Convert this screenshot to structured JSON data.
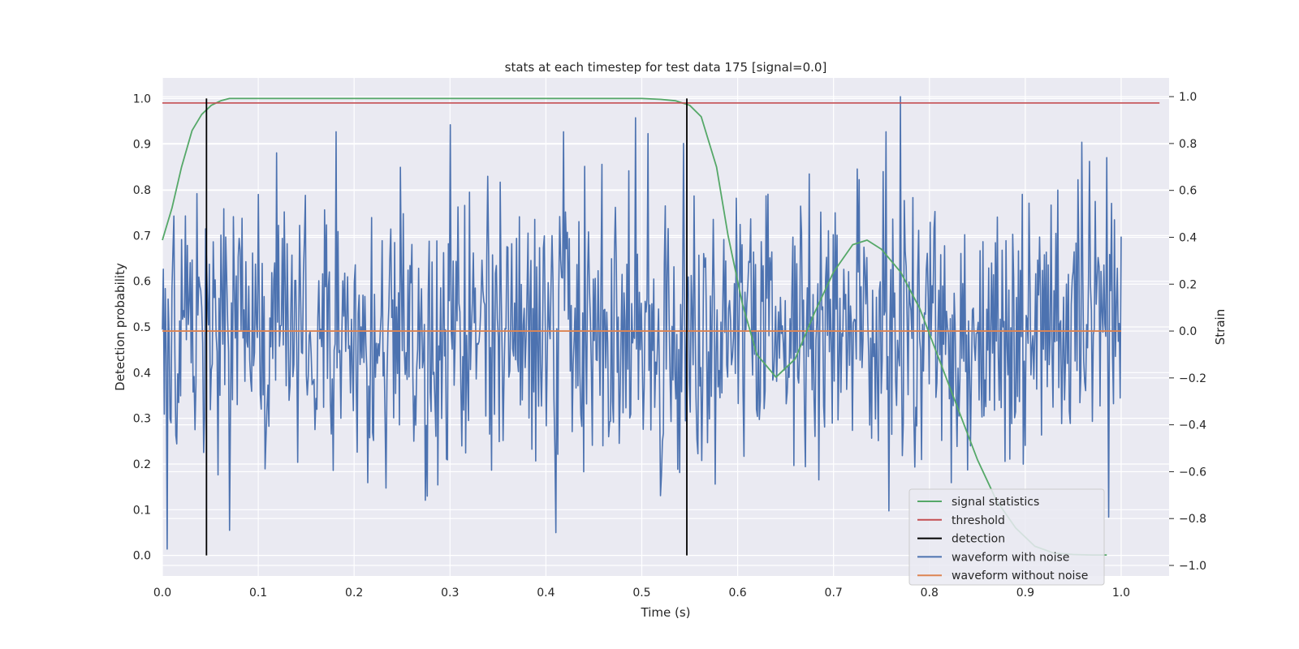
{
  "chart_data": {
    "type": "line",
    "title": "stats at each timestep for test data 175 [signal=0.0]",
    "xlabel": "Time (s)",
    "ylabel": "Detection probability",
    "y2label": "Strain",
    "xlim": [
      0.0,
      1.05
    ],
    "ylim": [
      -0.045,
      1.045
    ],
    "y2lim": [
      -1.045,
      1.08
    ],
    "xticks": [
      "0.0",
      "0.1",
      "0.2",
      "0.3",
      "0.4",
      "0.5",
      "0.6",
      "0.7",
      "0.8",
      "0.9",
      "1.0"
    ],
    "xtick_values": [
      0.0,
      0.1,
      0.2,
      0.3,
      0.4,
      0.5,
      0.6,
      0.7,
      0.8,
      0.9,
      1.0
    ],
    "yticks": [
      "0.0",
      "0.1",
      "0.2",
      "0.3",
      "0.4",
      "0.5",
      "0.6",
      "0.7",
      "0.8",
      "0.9",
      "1.0"
    ],
    "ytick_values": [
      0.0,
      0.1,
      0.2,
      0.3,
      0.4,
      0.5,
      0.6,
      0.7,
      0.8,
      0.9,
      1.0
    ],
    "y2ticks": [
      "−1.0",
      "−0.8",
      "−0.6",
      "−0.4",
      "−0.2",
      "0.0",
      "0.2",
      "0.4",
      "0.6",
      "0.8",
      "1.0"
    ],
    "y2tick_values": [
      -1.0,
      -0.8,
      -0.6,
      -0.4,
      -0.2,
      0.0,
      0.2,
      0.4,
      0.6,
      0.8,
      1.0
    ],
    "grid": true,
    "legend_position": "bottom-right",
    "series": [
      {
        "name": "signal statistics",
        "axis": "left",
        "color": "#55a868",
        "x": [
          0.0,
          0.01,
          0.02,
          0.031,
          0.041,
          0.051,
          0.061,
          0.07,
          0.1,
          0.2,
          0.3,
          0.4,
          0.5,
          0.52,
          0.535,
          0.55,
          0.562,
          0.578,
          0.59,
          0.605,
          0.62,
          0.64,
          0.66,
          0.68,
          0.7,
          0.72,
          0.735,
          0.75,
          0.77,
          0.79,
          0.81,
          0.83,
          0.85,
          0.87,
          0.89,
          0.91,
          0.93,
          0.95,
          0.97,
          0.985
        ],
        "values": [
          0.69,
          0.76,
          0.85,
          0.93,
          0.965,
          0.985,
          0.995,
          1.0,
          1.0,
          1.0,
          1.0,
          1.0,
          1.0,
          0.998,
          0.995,
          0.985,
          0.96,
          0.85,
          0.7,
          0.55,
          0.44,
          0.39,
          0.43,
          0.53,
          0.62,
          0.68,
          0.69,
          0.67,
          0.62,
          0.54,
          0.43,
          0.32,
          0.21,
          0.12,
          0.06,
          0.02,
          0.005,
          0.002,
          0.001,
          0.001
        ]
      },
      {
        "name": "threshold",
        "axis": "left",
        "color": "#c44e52",
        "x": [
          0.0,
          1.04
        ],
        "values": [
          0.99,
          0.99
        ]
      },
      {
        "name": "detection",
        "axis": "left",
        "color": "#000000",
        "type": "vlines",
        "x": [
          0.046,
          0.547
        ],
        "y_range": [
          0.0,
          1.0
        ]
      },
      {
        "name": "waveform with noise",
        "axis": "right",
        "color": "#4c72b0",
        "x_range": [
          0.0,
          1.0
        ],
        "n_points": 1000,
        "generator": "random",
        "amplitude": 0.3,
        "peaks": [
          {
            "x": 0.005,
            "value": -0.93
          },
          {
            "x": 0.119,
            "value": 0.76
          },
          {
            "x": 0.3,
            "value": 0.88
          },
          {
            "x": 0.41,
            "value": -0.86
          },
          {
            "x": 0.493,
            "value": 0.91
          },
          {
            "x": 0.77,
            "value": 1.0
          },
          {
            "x": 0.985,
            "value": 0.74
          }
        ]
      },
      {
        "name": "waveform without noise",
        "axis": "right",
        "color": "#dd8452",
        "x": [
          0.0,
          1.0
        ],
        "values": [
          0.0,
          0.0
        ]
      }
    ]
  }
}
